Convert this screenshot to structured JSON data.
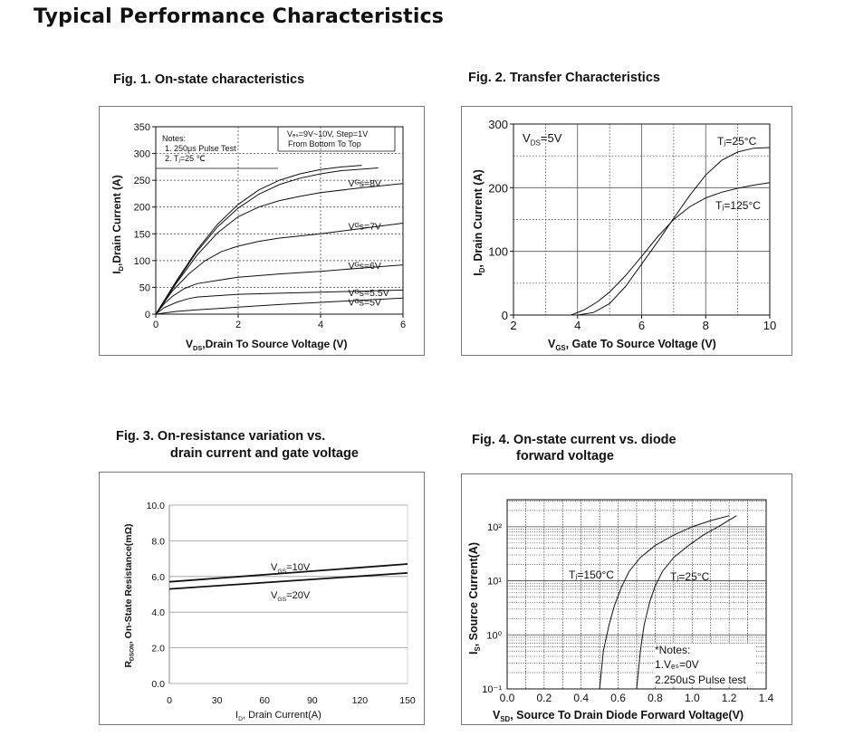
{
  "page": {
    "title": "Typical Performance Characteristics"
  },
  "chart_data": [
    {
      "id": "fig1",
      "type": "line",
      "title": "Fig. 1. On-state characteristics",
      "xlabel_parts": [
        "V",
        "DS",
        ",Drain To Source Voltage (V)"
      ],
      "ylabel_parts": [
        "I",
        "D",
        ",Drain Current (A)"
      ],
      "xlim": [
        0,
        6
      ],
      "ylim": [
        0,
        350
      ],
      "xticks": [
        0,
        2,
        4,
        6
      ],
      "yticks": [
        0,
        50,
        100,
        150,
        200,
        250,
        300,
        350
      ],
      "notes": [
        "Notes:",
        "1. 250μs Pulse Test",
        "2. Tⱼ=25 ℃"
      ],
      "step_note": [
        "Vₑₛ=9V~10V, Step=1V",
        "From Bottom To Top"
      ],
      "series": [
        {
          "name": "VGS=5V",
          "label": "Vᴳs=5V",
          "x": [
            0,
            0.5,
            1,
            2,
            3,
            4,
            5,
            6
          ],
          "y": [
            0,
            5,
            8,
            13,
            18,
            22,
            26,
            30
          ]
        },
        {
          "name": "VGS=5.5V",
          "label": "Vᴳs=5.5V",
          "x": [
            0,
            0.2,
            0.5,
            0.8,
            1,
            2,
            3,
            4,
            5,
            6
          ],
          "y": [
            0,
            12,
            22,
            29,
            32,
            37,
            39,
            41,
            43,
            45
          ]
        },
        {
          "name": "VGS=6V",
          "label": "Vᴳs=6V",
          "x": [
            0,
            0.2,
            0.4,
            0.7,
            1,
            1.5,
            2,
            3,
            4,
            5,
            6
          ],
          "y": [
            0,
            19,
            33,
            48,
            57,
            63,
            69,
            75,
            80,
            86,
            92
          ]
        },
        {
          "name": "VGS=7V",
          "label": "Vᴳs=7V",
          "x": [
            0,
            0.4,
            0.8,
            1.2,
            1.6,
            2,
            2.5,
            3,
            4,
            5,
            6
          ],
          "y": [
            0,
            43,
            75,
            100,
            117,
            127,
            136,
            142,
            150,
            160,
            170
          ]
        },
        {
          "name": "VGS=8V",
          "label": "Vᴳs=8V",
          "x": [
            0,
            0.5,
            1,
            1.5,
            2,
            2.5,
            3,
            3.5,
            4,
            5,
            6
          ],
          "y": [
            0,
            58,
            110,
            152,
            182,
            200,
            212,
            220,
            227,
            236,
            244
          ]
        },
        {
          "name": "VGS=9V",
          "label": "",
          "x": [
            0,
            0.5,
            1,
            1.5,
            2,
            2.5,
            3,
            3.5,
            4,
            4.5,
            5.4
          ],
          "y": [
            0,
            60,
            117,
            163,
            198,
            224,
            242,
            254,
            262,
            268,
            273
          ]
        },
        {
          "name": "VGS=10V",
          "label": "",
          "x": [
            0,
            0.5,
            1,
            1.5,
            2,
            2.5,
            3,
            3.5,
            4,
            4.5,
            5.0
          ],
          "y": [
            0,
            62,
            120,
            168,
            205,
            232,
            250,
            262,
            270,
            275,
            278
          ]
        }
      ]
    },
    {
      "id": "fig2",
      "type": "line",
      "title": "Fig. 2. Transfer Characteristics",
      "xlabel_parts": [
        "V",
        "GS",
        ",  Gate To Source Voltage (V)"
      ],
      "ylabel_parts": [
        "I",
        "D",
        ",  Drain Current (A)"
      ],
      "xlim": [
        2,
        10
      ],
      "ylim": [
        0,
        300
      ],
      "xticks": [
        2,
        4,
        6,
        8,
        10
      ],
      "yticks": [
        0,
        100,
        200,
        300
      ],
      "annotation": [
        "V",
        "DS",
        "=5V"
      ],
      "series": [
        {
          "name": "Tj=25°C",
          "label": "Tⱼ=25°C",
          "x": [
            4.0,
            4.5,
            5,
            5.5,
            6,
            6.5,
            7,
            7.5,
            8,
            8.5,
            9,
            9.5,
            10
          ],
          "y": [
            0,
            4,
            18,
            45,
            80,
            115,
            152,
            188,
            220,
            243,
            256,
            262,
            263
          ]
        },
        {
          "name": "Tj=125°C",
          "label": "Tⱼ=125°C",
          "x": [
            3.8,
            4.2,
            4.6,
            5,
            5.5,
            6,
            6.5,
            7,
            7.5,
            8,
            8.5,
            9,
            9.5,
            10
          ],
          "y": [
            0,
            8,
            20,
            36,
            62,
            92,
            123,
            150,
            170,
            184,
            193,
            199,
            204,
            208
          ]
        }
      ]
    },
    {
      "id": "fig3",
      "type": "line",
      "title_lines": [
        "Fig. 3. On-resistance variation vs.",
        "drain current and gate voltage"
      ],
      "xlabel_parts": [
        "I",
        "D",
        ", Drain Current(A)"
      ],
      "ylabel_parts": [
        "R",
        "DSON",
        ", On-State Resistance(mΩ)"
      ],
      "xlim": [
        0,
        150
      ],
      "ylim": [
        0,
        10
      ],
      "xticks": [
        0,
        30,
        60,
        90,
        120,
        150
      ],
      "yticks": [
        0.0,
        2.0,
        4.0,
        6.0,
        8.0,
        10.0
      ],
      "series": [
        {
          "name": "VGS=10V",
          "label_parts": [
            "V",
            "GS",
            "=10V"
          ],
          "x": [
            0,
            150
          ],
          "y": [
            5.7,
            6.7
          ]
        },
        {
          "name": "VGS=20V",
          "label_parts": [
            "V",
            "GS",
            "=20V"
          ],
          "x": [
            0,
            150
          ],
          "y": [
            5.3,
            6.2
          ]
        }
      ]
    },
    {
      "id": "fig4",
      "type": "line",
      "title_lines": [
        "Fig. 4. On-state current vs. diode",
        "forward voltage"
      ],
      "xlabel_parts": [
        "V",
        "SD",
        ", Source To Drain Diode Forward Voltage(V)"
      ],
      "ylabel_parts": [
        "I",
        "S",
        ", Source Current(A)"
      ],
      "xlim": [
        0.0,
        1.4
      ],
      "ylim_log10": [
        -1,
        2.5
      ],
      "xticks": [
        "0.0",
        "0.2",
        "0.4",
        "0.6",
        "0.8",
        "1.0",
        "1.2",
        "1.4"
      ],
      "yticks": [
        "10⁻¹",
        "10⁰",
        "10¹",
        "10²"
      ],
      "notes": [
        "*Notes:",
        "1.Vₑₛ=0V",
        "2.250uS Pulse test"
      ],
      "series": [
        {
          "name": "Tj=150°C",
          "label": "Tⱼ=150°C",
          "x": [
            0.5,
            0.52,
            0.55,
            0.58,
            0.62,
            0.66,
            0.72,
            0.8,
            0.9,
            1.0,
            1.1,
            1.2
          ],
          "y": [
            0.1,
            0.5,
            1.5,
            3.5,
            8,
            15,
            27,
            45,
            70,
            100,
            130,
            160
          ]
        },
        {
          "name": "Tj=25°C",
          "label": "Tⱼ=25°C",
          "x": [
            0.7,
            0.72,
            0.74,
            0.77,
            0.8,
            0.84,
            0.9,
            0.98,
            1.06,
            1.14,
            1.24
          ],
          "y": [
            0.1,
            0.5,
            1.5,
            4,
            8,
            15,
            27,
            45,
            70,
            100,
            160
          ]
        }
      ]
    }
  ]
}
